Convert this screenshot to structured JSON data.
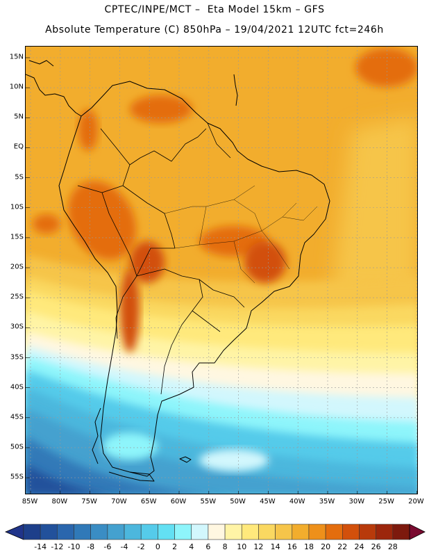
{
  "header": {
    "title_line1": "CPTEC/INPE/MCT –  Eta Model 15km – GFS",
    "title_line2": "Absolute Temperature (C) 850hPa – 19/04/2021 12UTC fct=246h"
  },
  "map": {
    "lat_labels": [
      "15N",
      "10N",
      "5N",
      "EQ",
      "5S",
      "10S",
      "15S",
      "20S",
      "25S",
      "30S",
      "35S",
      "40S",
      "45S",
      "50S",
      "55S"
    ],
    "lon_labels": [
      "85W",
      "80W",
      "75W",
      "70W",
      "65W",
      "60W",
      "55W",
      "50W",
      "45W",
      "40W",
      "35W",
      "30W",
      "25W",
      "20W"
    ]
  },
  "colorbar": {
    "labels": [
      "-14",
      "-12",
      "-10",
      "-8",
      "-6",
      "-4",
      "-2",
      "0",
      "2",
      "4",
      "6",
      "8",
      "10",
      "12",
      "14",
      "16",
      "18",
      "20",
      "22",
      "24",
      "26",
      "28"
    ],
    "colors": [
      "#1d3f8a",
      "#22519b",
      "#2a66ad",
      "#3079b8",
      "#3a8dc4",
      "#44a1cf",
      "#4cb7dd",
      "#55cbea",
      "#63e0f3",
      "#8ef5fb",
      "#d2f7fd",
      "#fff7e1",
      "#fff4a6",
      "#ffe97c",
      "#fad861",
      "#f6c54a",
      "#f2ad2d",
      "#ee901a",
      "#e46d0d",
      "#d2500b",
      "#b83a0b",
      "#9c260c",
      "#7d190d"
    ],
    "low_color": "#20348a",
    "high_color": "#7a0a30"
  }
}
